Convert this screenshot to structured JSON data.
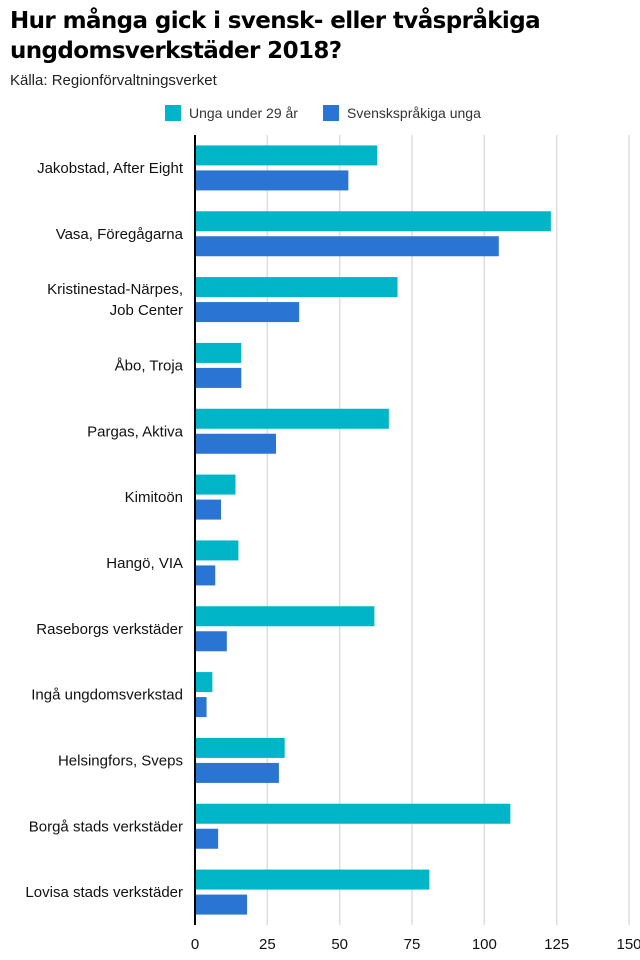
{
  "header": {
    "title": "Hur många gick i svensk- eller tvåspråkiga ungdomsverkstäder 2018?",
    "source": "Källa: Regionförvaltningsverket"
  },
  "colors": {
    "series_0": "#00b5c8",
    "series_1": "#2a74d3",
    "grid": "#dddddd",
    "axis": "#000000"
  },
  "chart_data": {
    "type": "bar",
    "orientation": "horizontal",
    "title": "Hur många gick i svensk- eller tvåspråkiga ungdomsverkstäder 2018?",
    "subtitle": "Källa: Regionförvaltningsverket",
    "xlabel": "",
    "ylabel": "",
    "xlim": [
      0,
      150
    ],
    "xticks": [
      0,
      25,
      50,
      75,
      100,
      125,
      150
    ],
    "grid": true,
    "legend": "top-center",
    "categories": [
      "Jakobstad, After Eight",
      "Vasa, Föregågarna",
      "Kristinestad-Närpes, Job Center",
      "Åbo, Troja",
      "Pargas, Aktiva",
      "Kimitoön",
      "Hangö, VIA",
      "Raseborgs verkstäder",
      "Ingå ungdomsverkstad",
      "Helsingfors, Sveps",
      "Borgå stads verkstäder",
      "Lovisa stads verkstäder"
    ],
    "series": [
      {
        "name": "Unga under 29 år",
        "values": [
          63,
          123,
          70,
          16,
          67,
          14,
          15,
          62,
          6,
          31,
          109,
          81
        ]
      },
      {
        "name": "Svenskspråkiga unga",
        "values": [
          53,
          105,
          36,
          16,
          28,
          9,
          7,
          11,
          4,
          29,
          8,
          18
        ]
      }
    ]
  }
}
